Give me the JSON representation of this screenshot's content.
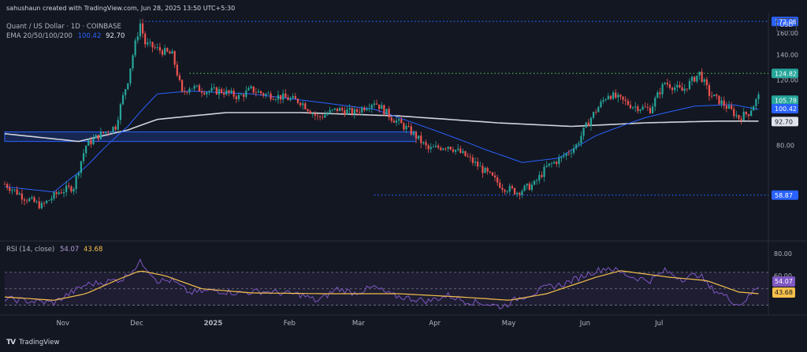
{
  "header": {
    "credit": "sahushaun created with TradingView.com, Jun 28, 2025 13:50 UTC+5:30",
    "symbol": "Quant / US Dollar · 1D · COINBASE",
    "ema_label": "EMA 20/50/100/200",
    "ema_values": [
      "100.42",
      "92.70"
    ],
    "currency_button": "USD"
  },
  "rsi_pane": {
    "label": "RSI (14, close)",
    "values": [
      "54.07",
      "43.68"
    ],
    "axis_ticks": [
      "80.00",
      "60.00"
    ]
  },
  "footer": {
    "brand": "TradingView",
    "logo_text": "TV"
  },
  "colors": {
    "background": "#131722",
    "up_candle": "#26a69a",
    "down_candle": "#ef5350",
    "ema_fast": "#2962ff",
    "ema_slow": "#d1d4dc",
    "rsi_line": "#7e57c2",
    "rsi_ma": "#f5c04a",
    "level_blue": "#2962ff",
    "level_green": "#4caf50"
  },
  "chart_data": {
    "type": "candlestick",
    "x_ticks": [
      "Nov",
      "Dec",
      "2025",
      "Feb",
      "Mar",
      "Apr",
      "May",
      "Jun",
      "Jul"
    ],
    "y_ticks": [
      "160.00",
      "140.00",
      "120.00",
      "80.00"
    ],
    "price_range": [
      45,
      180
    ],
    "y_scale": "log",
    "price_labels": [
      {
        "value": 172.06,
        "label": "172.06",
        "color": "#2962ff"
      },
      {
        "value": 124.82,
        "label": "124.82",
        "color": "#26a69a"
      },
      {
        "value": 105.78,
        "label": "105.78",
        "color": "#26a69a"
      },
      {
        "value": 100.42,
        "label": "100.42",
        "color": "#2962ff"
      },
      {
        "value": 92.7,
        "label": "92.70",
        "color": "#e0e3eb"
      },
      {
        "value": 58.87,
        "label": "58.87",
        "color": "#2962ff"
      }
    ],
    "levels": [
      {
        "value": 172.06,
        "color": "#2962ff",
        "start_day": 57
      },
      {
        "value": 124.82,
        "color": "#4caf50",
        "start_day": 75
      },
      {
        "value": 58.87,
        "color": "#2962ff",
        "start_day": 150
      }
    ],
    "zone": {
      "from": 82,
      "to": 87,
      "start_day": 0,
      "end_day": 167
    },
    "anchors": [
      [
        0,
        63
      ],
      [
        8,
        58
      ],
      [
        15,
        55
      ],
      [
        22,
        60
      ],
      [
        28,
        62
      ],
      [
        33,
        80
      ],
      [
        38,
        85
      ],
      [
        45,
        90
      ],
      [
        50,
        120
      ],
      [
        55,
        170
      ],
      [
        57,
        150
      ],
      [
        62,
        145
      ],
      [
        68,
        140
      ],
      [
        72,
        110
      ],
      [
        75,
        115
      ],
      [
        82,
        112
      ],
      [
        88,
        112
      ],
      [
        95,
        108
      ],
      [
        100,
        113
      ],
      [
        105,
        110
      ],
      [
        112,
        108
      ],
      [
        120,
        105
      ],
      [
        127,
        95
      ],
      [
        135,
        100
      ],
      [
        142,
        98
      ],
      [
        150,
        105
      ],
      [
        157,
        95
      ],
      [
        165,
        87
      ],
      [
        172,
        78
      ],
      [
        180,
        80
      ],
      [
        187,
        75
      ],
      [
        195,
        68
      ],
      [
        202,
        62
      ],
      [
        208,
        60
      ],
      [
        215,
        63
      ],
      [
        220,
        70
      ],
      [
        226,
        74
      ],
      [
        232,
        80
      ],
      [
        238,
        95
      ],
      [
        245,
        110
      ],
      [
        255,
        102
      ],
      [
        262,
        100
      ],
      [
        268,
        118
      ],
      [
        275,
        112
      ],
      [
        282,
        125
      ],
      [
        286,
        110
      ],
      [
        292,
        103
      ],
      [
        298,
        95
      ],
      [
        302,
        98
      ],
      [
        306,
        108
      ]
    ],
    "rsi_range": [
      20,
      90
    ],
    "rsi_anchors": [
      [
        0,
        38
      ],
      [
        10,
        35
      ],
      [
        20,
        33
      ],
      [
        25,
        42
      ],
      [
        33,
        55
      ],
      [
        40,
        58
      ],
      [
        48,
        62
      ],
      [
        55,
        82
      ],
      [
        57,
        78
      ],
      [
        62,
        60
      ],
      [
        68,
        60
      ],
      [
        75,
        45
      ],
      [
        85,
        48
      ],
      [
        95,
        45
      ],
      [
        105,
        47
      ],
      [
        112,
        45
      ],
      [
        120,
        43
      ],
      [
        127,
        35
      ],
      [
        135,
        50
      ],
      [
        142,
        45
      ],
      [
        150,
        52
      ],
      [
        157,
        42
      ],
      [
        165,
        38
      ],
      [
        172,
        35
      ],
      [
        180,
        42
      ],
      [
        187,
        35
      ],
      [
        195,
        32
      ],
      [
        202,
        28
      ],
      [
        208,
        38
      ],
      [
        215,
        45
      ],
      [
        220,
        52
      ],
      [
        226,
        55
      ],
      [
        232,
        62
      ],
      [
        238,
        70
      ],
      [
        245,
        76
      ],
      [
        255,
        64
      ],
      [
        262,
        60
      ],
      [
        268,
        72
      ],
      [
        275,
        62
      ],
      [
        282,
        68
      ],
      [
        286,
        52
      ],
      [
        292,
        42
      ],
      [
        298,
        30
      ],
      [
        302,
        40
      ],
      [
        306,
        54
      ]
    ],
    "rsi_ma_anchors": [
      [
        0,
        40
      ],
      [
        20,
        36
      ],
      [
        33,
        44
      ],
      [
        45,
        60
      ],
      [
        55,
        72
      ],
      [
        65,
        66
      ],
      [
        80,
        50
      ],
      [
        100,
        45
      ],
      [
        130,
        44
      ],
      [
        160,
        44
      ],
      [
        185,
        40
      ],
      [
        205,
        36
      ],
      [
        220,
        44
      ],
      [
        240,
        64
      ],
      [
        250,
        72
      ],
      [
        270,
        64
      ],
      [
        285,
        60
      ],
      [
        298,
        46
      ],
      [
        306,
        44
      ]
    ],
    "ema_fast_anchors": [
      [
        0,
        62
      ],
      [
        20,
        60
      ],
      [
        33,
        70
      ],
      [
        50,
        90
      ],
      [
        62,
        110
      ],
      [
        75,
        112
      ],
      [
        100,
        110
      ],
      [
        125,
        105
      ],
      [
        150,
        100
      ],
      [
        170,
        90
      ],
      [
        195,
        78
      ],
      [
        210,
        72
      ],
      [
        225,
        74
      ],
      [
        240,
        85
      ],
      [
        260,
        95
      ],
      [
        280,
        102
      ],
      [
        295,
        103
      ],
      [
        306,
        100
      ]
    ],
    "ema_slow_anchors": [
      [
        0,
        86
      ],
      [
        30,
        82
      ],
      [
        50,
        88
      ],
      [
        62,
        94
      ],
      [
        90,
        98
      ],
      [
        120,
        98
      ],
      [
        160,
        96
      ],
      [
        200,
        92
      ],
      [
        230,
        90
      ],
      [
        260,
        92
      ],
      [
        290,
        93
      ],
      [
        306,
        93
      ]
    ]
  }
}
